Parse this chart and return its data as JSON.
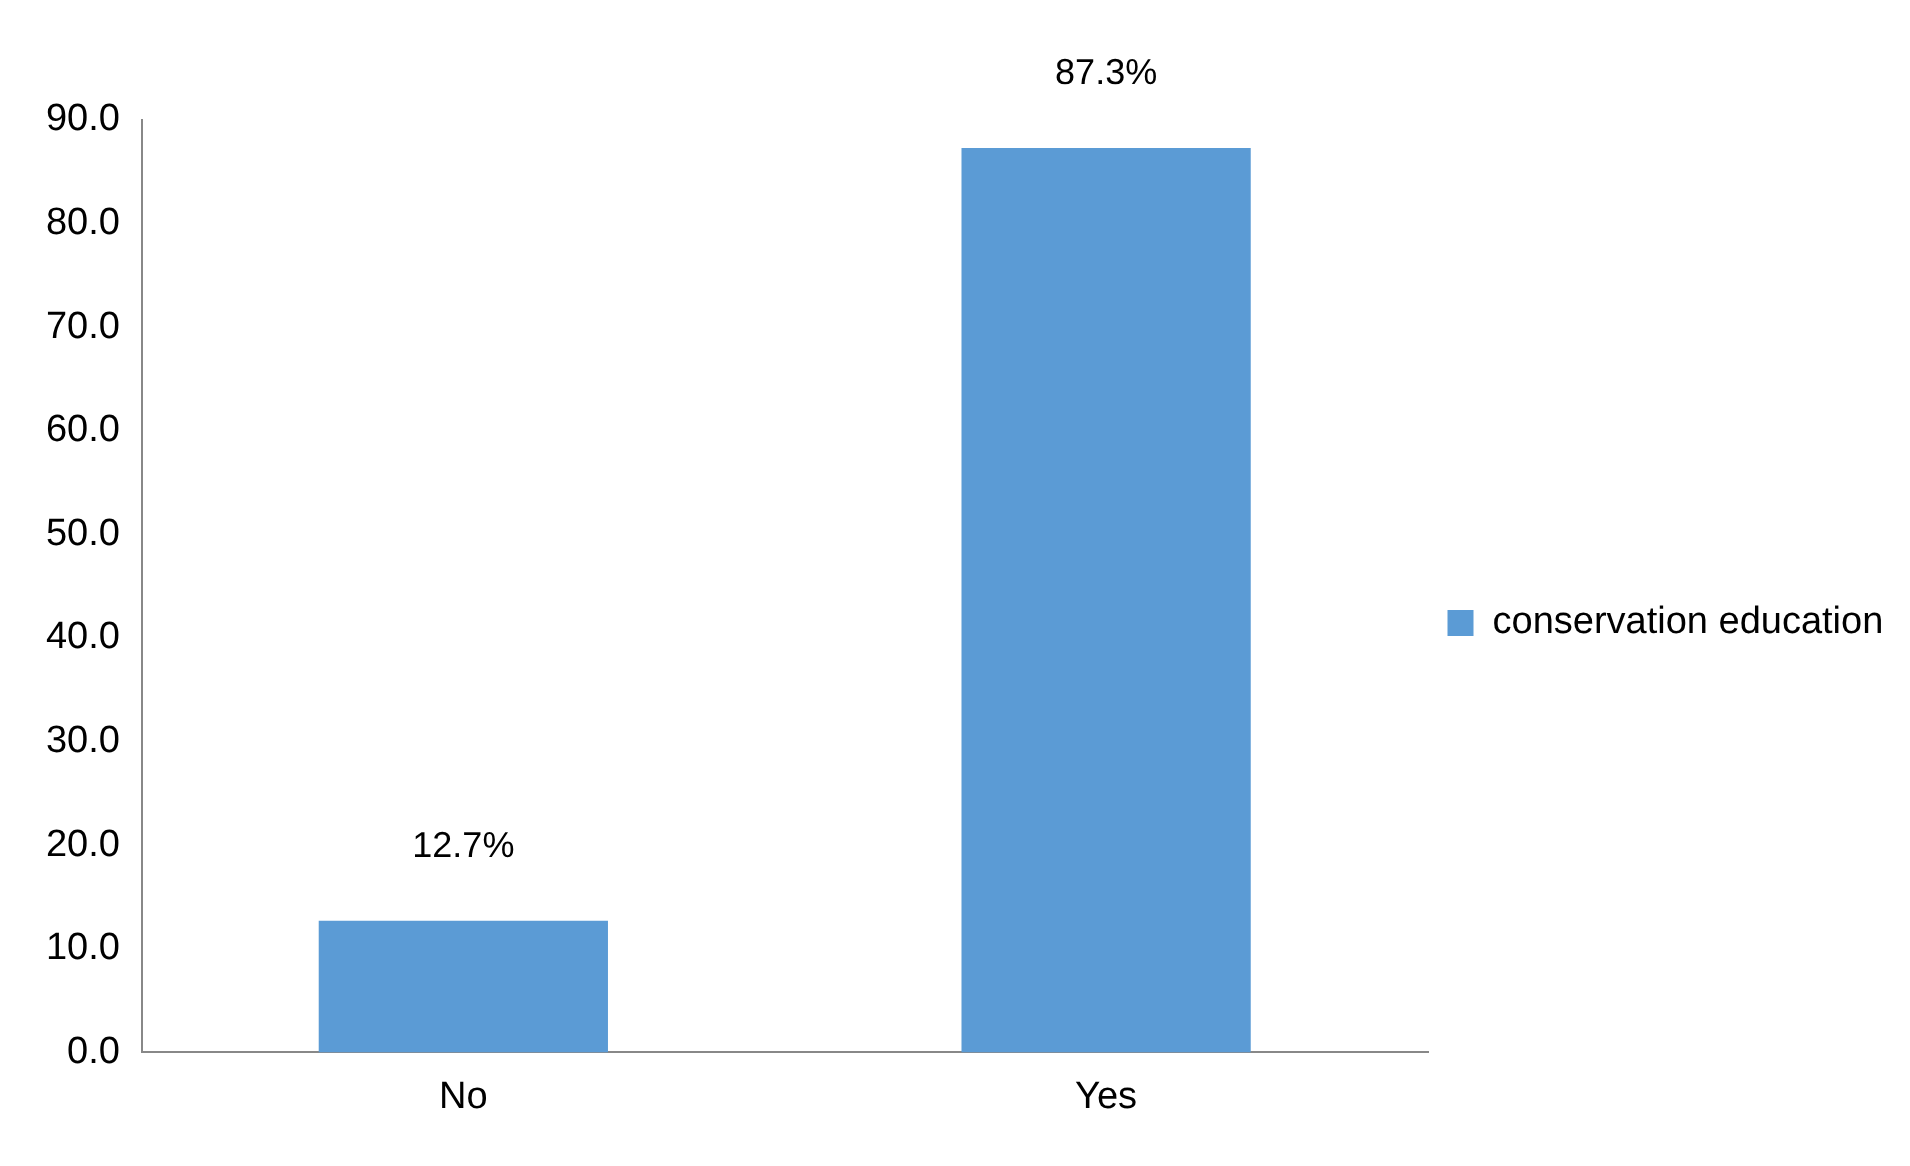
{
  "chart_data": {
    "type": "bar",
    "categories": [
      "No",
      "Yes"
    ],
    "series": [
      {
        "name": "conservation education",
        "color": "#5b9bd5",
        "values": [
          12.7,
          87.3
        ],
        "value_labels": [
          "12.7%",
          "87.3%"
        ]
      }
    ],
    "ylim": [
      0,
      90
    ],
    "yticks": [
      {
        "value": 0,
        "label": "0.0"
      },
      {
        "value": 10,
        "label": "10.0"
      },
      {
        "value": 20,
        "label": "20.0"
      },
      {
        "value": 30,
        "label": "30.0"
      },
      {
        "value": 40,
        "label": "40.0"
      },
      {
        "value": 50,
        "label": "50.0"
      },
      {
        "value": 60,
        "label": "60.0"
      },
      {
        "value": 70,
        "label": "70.0"
      },
      {
        "value": 80,
        "label": "80.0"
      },
      {
        "value": 90,
        "label": "90.0"
      }
    ],
    "grid": false,
    "legend": "right"
  }
}
